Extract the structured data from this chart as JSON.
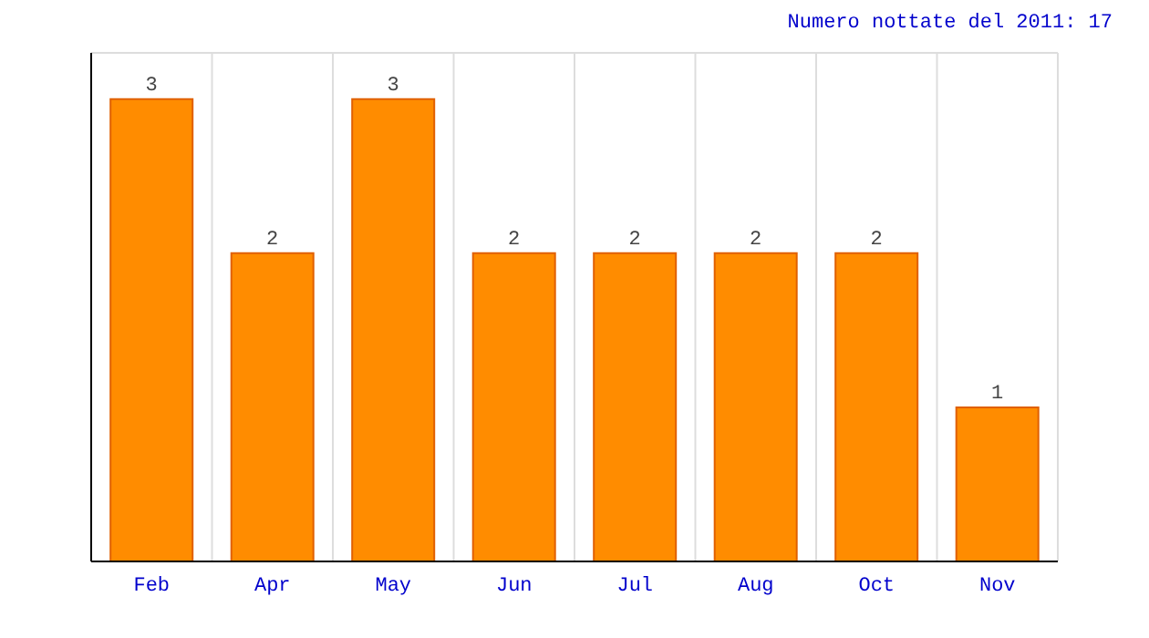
{
  "chart_data": {
    "type": "bar",
    "title": "Numero nottate del 2011: 17",
    "categories": [
      "Feb",
      "Apr",
      "May",
      "Jun",
      "Jul",
      "Aug",
      "Oct",
      "Nov"
    ],
    "values": [
      3,
      2,
      3,
      2,
      2,
      2,
      2,
      1
    ],
    "color": "#ff8c00",
    "tick_labels": "x",
    "grid": true,
    "data_labels": true
  }
}
